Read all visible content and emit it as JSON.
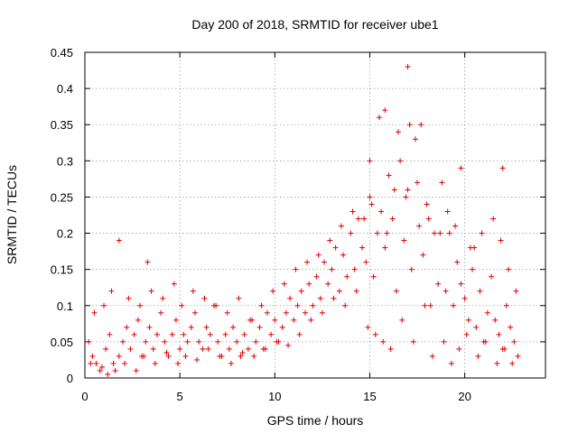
{
  "chart_data": {
    "type": "scatter",
    "title": "Day 200 of 2018, SRMTID for receiver ube1",
    "xlabel": "GPS time / hours",
    "ylabel": "SRMTID / TECUs",
    "xlim": [
      0,
      24.25
    ],
    "ylim": [
      0,
      0.45
    ],
    "x_ticks": [
      "0",
      "5",
      "10",
      "15",
      "20"
    ],
    "x_tick_values": [
      0,
      5,
      10,
      15,
      20
    ],
    "y_ticks": [
      "0",
      "0.05",
      "0.1",
      "0.15",
      "0.2",
      "0.25",
      "0.3",
      "0.35",
      "0.4",
      "0.45"
    ],
    "y_tick_values": [
      0,
      0.05,
      0.1,
      0.15,
      0.2,
      0.25,
      0.3,
      0.35,
      0.4,
      0.45
    ],
    "grid": true,
    "marker": "+",
    "marker_color": "#e00000",
    "series": [
      {
        "name": "SRMTID ube1",
        "x": [
          0.2,
          0.4,
          0.6,
          0.9,
          1.1,
          1.3,
          1.5,
          1.6,
          1.8,
          2.0,
          2.2,
          2.4,
          2.6,
          2.8,
          3.0,
          3.2,
          3.4,
          3.6,
          3.8,
          4.0,
          4.2,
          4.4,
          4.6,
          4.8,
          5.0,
          5.2,
          5.4,
          5.6,
          5.8,
          6.0,
          6.2,
          6.4,
          6.6,
          6.8,
          7.0,
          7.2,
          7.4,
          7.6,
          7.8,
          8.0,
          8.2,
          8.4,
          8.6,
          8.8,
          9.0,
          9.2,
          9.4,
          9.6,
          9.8,
          10.0,
          10.2,
          10.4,
          10.6,
          10.8,
          11.0,
          11.2,
          11.4,
          11.6,
          11.8,
          12.0,
          12.2,
          12.4,
          12.6,
          12.8,
          13.0,
          13.2,
          13.4,
          13.6,
          13.8,
          14.0,
          14.2,
          14.4,
          14.6,
          14.8,
          15.0,
          15.2,
          15.4,
          15.6,
          15.8,
          16.0,
          16.2,
          16.4,
          16.6,
          16.8,
          17.0,
          17.2,
          17.4,
          17.6,
          17.8,
          18.0,
          18.2,
          18.4,
          18.6,
          18.8,
          19.0,
          19.2,
          19.4,
          19.6,
          19.8,
          20.0,
          20.2,
          20.4,
          20.6,
          20.8,
          21.0,
          21.2,
          21.4,
          21.6,
          21.8,
          22.0,
          22.2,
          22.4,
          22.6,
          22.8,
          1.8,
          3.3,
          15.0,
          15.5,
          15.8,
          16.5,
          17.0,
          17.1,
          17.7,
          19.8,
          20.3,
          22.0,
          0.3,
          0.8,
          1.2,
          2.1,
          2.7,
          3.1,
          3.7,
          4.3,
          4.9,
          5.3,
          5.9,
          6.5,
          7.1,
          7.7,
          8.3,
          8.9,
          9.5,
          10.1,
          10.7,
          11.3,
          11.9,
          12.5,
          13.1,
          13.7,
          14.3,
          14.9,
          15.3,
          15.7,
          16.1,
          16.7,
          17.3,
          17.9,
          18.3,
          18.9,
          19.3,
          19.7,
          20.1,
          20.7,
          21.1,
          21.7,
          22.1,
          22.5,
          0.5,
          1.0,
          1.4,
          2.3,
          2.9,
          3.5,
          4.1,
          4.7,
          5.1,
          5.7,
          6.3,
          6.9,
          7.5,
          8.1,
          8.7,
          9.3,
          9.9,
          10.5,
          11.1,
          11.7,
          12.3,
          12.9,
          13.5,
          14.1,
          14.7,
          15.1,
          15.9,
          16.3,
          16.9,
          17.5,
          18.1,
          18.7,
          19.1,
          19.5,
          20.5,
          20.9,
          21.5,
          21.9,
          22.3,
          22.7
        ],
        "y": [
          0.05,
          0.03,
          0.02,
          0.015,
          0.04,
          0.06,
          0.02,
          0.01,
          0.03,
          0.05,
          0.07,
          0.04,
          0.06,
          0.08,
          0.03,
          0.05,
          0.07,
          0.04,
          0.06,
          0.09,
          0.05,
          0.03,
          0.06,
          0.08,
          0.04,
          0.06,
          0.05,
          0.07,
          0.09,
          0.05,
          0.04,
          0.07,
          0.06,
          0.1,
          0.05,
          0.03,
          0.06,
          0.04,
          0.07,
          0.05,
          0.03,
          0.06,
          0.04,
          0.08,
          0.05,
          0.07,
          0.04,
          0.09,
          0.06,
          0.08,
          0.05,
          0.07,
          0.09,
          0.11,
          0.08,
          0.1,
          0.12,
          0.09,
          0.13,
          0.1,
          0.14,
          0.11,
          0.16,
          0.13,
          0.15,
          0.18,
          0.12,
          0.17,
          0.14,
          0.2,
          0.15,
          0.22,
          0.18,
          0.16,
          0.25,
          0.14,
          0.2,
          0.23,
          0.18,
          0.28,
          0.22,
          0.12,
          0.3,
          0.19,
          0.26,
          0.15,
          0.33,
          0.21,
          0.17,
          0.24,
          0.1,
          0.2,
          0.13,
          0.27,
          0.12,
          0.2,
          0.1,
          0.16,
          0.13,
          0.11,
          0.08,
          0.15,
          0.07,
          0.12,
          0.05,
          0.09,
          0.14,
          0.08,
          0.06,
          0.04,
          0.1,
          0.07,
          0.05,
          0.03,
          0.19,
          0.16,
          0.3,
          0.36,
          0.37,
          0.34,
          0.43,
          0.35,
          0.35,
          0.29,
          0.18,
          0.29,
          0.02,
          0.01,
          0.005,
          0.02,
          0.01,
          0.03,
          0.02,
          0.035,
          0.02,
          0.03,
          0.025,
          0.04,
          0.03,
          0.02,
          0.035,
          0.03,
          0.04,
          0.05,
          0.045,
          0.06,
          0.08,
          0.09,
          0.11,
          0.1,
          0.12,
          0.07,
          0.06,
          0.05,
          0.04,
          0.08,
          0.05,
          0.1,
          0.03,
          0.05,
          0.02,
          0.04,
          0.06,
          0.03,
          0.05,
          0.02,
          0.04,
          0.02,
          0.09,
          0.1,
          0.12,
          0.11,
          0.1,
          0.12,
          0.11,
          0.13,
          0.1,
          0.12,
          0.11,
          0.1,
          0.09,
          0.11,
          0.08,
          0.1,
          0.12,
          0.13,
          0.15,
          0.16,
          0.17,
          0.19,
          0.21,
          0.23,
          0.22,
          0.24,
          0.2,
          0.26,
          0.25,
          0.27,
          0.22,
          0.2,
          0.23,
          0.21,
          0.18,
          0.2,
          0.22,
          0.19,
          0.15,
          0.12
        ]
      }
    ]
  }
}
